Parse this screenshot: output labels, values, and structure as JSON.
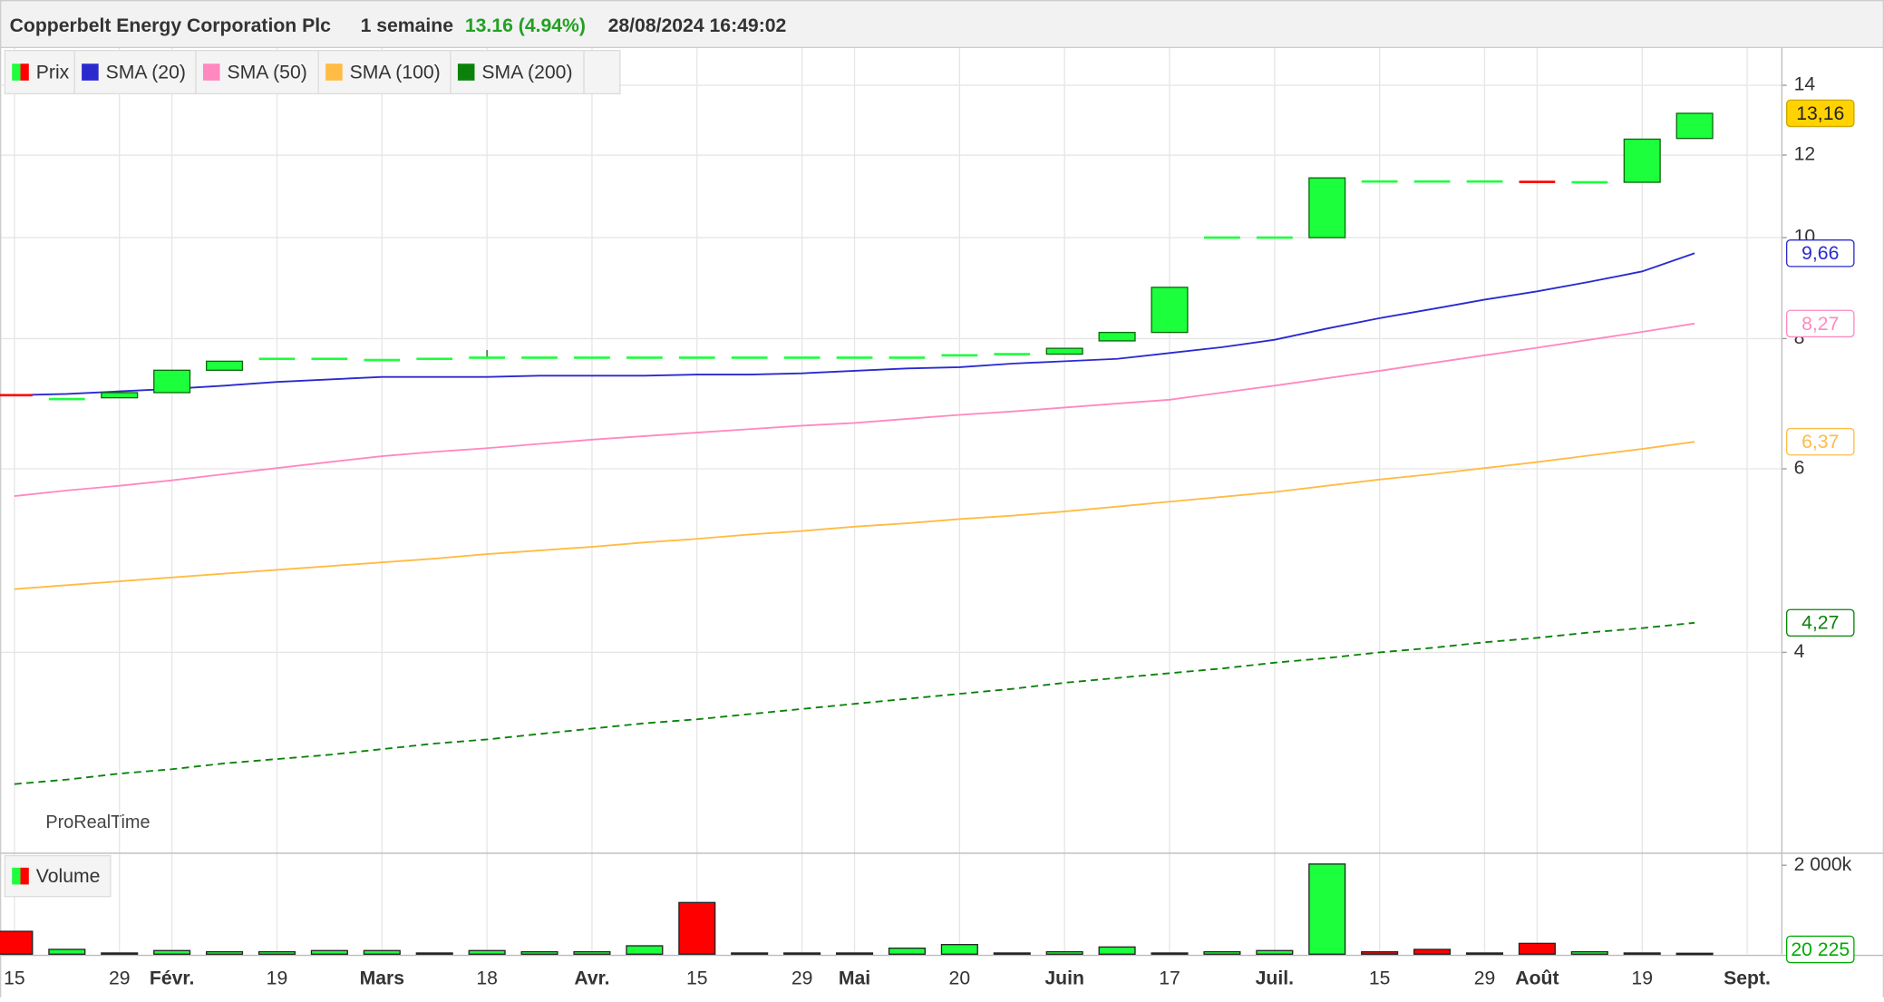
{
  "chart_data": [
    {
      "type": "candlestick",
      "title": "Copperbelt Energy Corporation Plc",
      "period": "1 semaine",
      "change": "13.16 (4.94%)",
      "timestamp": "28/08/2024 16:49:02",
      "watermark": "ProRealTime",
      "log_scale": true,
      "grid": true,
      "ylim": [
        2.58,
        15.2
      ],
      "yticks": [
        4,
        6,
        8,
        10,
        12,
        14
      ],
      "candles": {
        "name": "Prix",
        "up_color": "#1cff3c",
        "down_color": "#ff0000",
        "last_value_label": "13,16",
        "open": [
          7.06,
          7.0,
          7.02,
          7.1,
          7.46,
          7.65,
          7.65,
          7.63,
          7.65,
          7.67,
          7.67,
          7.67,
          7.67,
          7.67,
          7.67,
          7.67,
          7.67,
          7.67,
          7.67,
          7.73,
          7.73,
          7.96,
          8.11,
          10,
          10,
          10,
          11.32,
          11.32,
          11.32,
          11.31,
          11.3,
          11.3,
          12.45,
          null
        ],
        "high": [
          7.06,
          7.0,
          7.1,
          7.46,
          7.61,
          7.65,
          7.65,
          7.63,
          7.65,
          7.8,
          7.67,
          7.67,
          7.67,
          7.67,
          7.67,
          7.67,
          7.67,
          7.67,
          7.71,
          7.73,
          7.83,
          8.11,
          8.96,
          10,
          10,
          11.41,
          11.32,
          11.32,
          11.32,
          11.31,
          11.3,
          12.43,
          13.16,
          null
        ],
        "low": [
          7.04,
          7.0,
          7.02,
          7.1,
          7.46,
          7.65,
          7.65,
          7.63,
          7.65,
          7.67,
          7.67,
          7.67,
          7.67,
          7.67,
          7.67,
          7.67,
          7.67,
          7.67,
          7.67,
          7.73,
          7.73,
          7.96,
          8.11,
          10,
          10,
          10,
          11.32,
          11.32,
          11.32,
          11.29,
          11.3,
          11.3,
          12.45,
          null
        ],
        "close": [
          7.04,
          7.0,
          7.1,
          7.46,
          7.61,
          7.65,
          7.65,
          7.63,
          7.65,
          7.67,
          7.67,
          7.67,
          7.67,
          7.67,
          7.67,
          7.67,
          7.67,
          7.67,
          7.71,
          7.73,
          7.83,
          8.11,
          8.96,
          10,
          10,
          11.41,
          11.32,
          11.32,
          11.32,
          11.29,
          11.3,
          12.43,
          13.16,
          null
        ]
      },
      "series": [
        {
          "name": "SMA (20)",
          "color": "#2a2acf",
          "dashed": false,
          "last_value_label": "9,66",
          "values": [
            7.06,
            7.08,
            7.12,
            7.16,
            7.21,
            7.27,
            7.31,
            7.35,
            7.35,
            7.35,
            7.37,
            7.37,
            7.37,
            7.39,
            7.39,
            7.41,
            7.45,
            7.49,
            7.51,
            7.57,
            7.61,
            7.65,
            7.75,
            7.85,
            7.98,
            8.18,
            8.37,
            8.54,
            8.72,
            8.88,
            9.07,
            9.28,
            9.66,
            null
          ]
        },
        {
          "name": "SMA (50)",
          "color": "#ff88c0",
          "dashed": false,
          "last_value_label": "8,27",
          "values": [
            5.65,
            5.72,
            5.78,
            5.85,
            5.93,
            6.01,
            6.09,
            6.17,
            6.23,
            6.28,
            6.34,
            6.4,
            6.45,
            6.5,
            6.55,
            6.6,
            6.64,
            6.7,
            6.76,
            6.81,
            6.87,
            6.93,
            6.99,
            7.1,
            7.21,
            7.33,
            7.45,
            7.58,
            7.71,
            7.84,
            7.98,
            8.12,
            8.27,
            null
          ]
        },
        {
          "name": "SMA (100)",
          "color": "#ffbb44",
          "dashed": false,
          "last_value_label": "6,37",
          "values": [
            4.6,
            4.64,
            4.68,
            4.72,
            4.76,
            4.8,
            4.84,
            4.88,
            4.92,
            4.97,
            5.01,
            5.05,
            5.1,
            5.14,
            5.19,
            5.23,
            5.28,
            5.32,
            5.37,
            5.41,
            5.46,
            5.52,
            5.58,
            5.64,
            5.7,
            5.78,
            5.86,
            5.93,
            6.01,
            6.09,
            6.18,
            6.27,
            6.37,
            null
          ]
        },
        {
          "name": "SMA (200)",
          "color": "#0a820a",
          "dashed": true,
          "last_value_label": "4,27",
          "values": [
            2.99,
            3.02,
            3.06,
            3.09,
            3.13,
            3.16,
            3.19,
            3.23,
            3.27,
            3.3,
            3.34,
            3.38,
            3.42,
            3.45,
            3.49,
            3.53,
            3.57,
            3.61,
            3.65,
            3.69,
            3.74,
            3.78,
            3.82,
            3.86,
            3.91,
            3.95,
            4.0,
            4.04,
            4.09,
            4.13,
            4.18,
            4.22,
            4.27,
            null
          ]
        }
      ]
    },
    {
      "type": "bar",
      "categories": [
        "15",
        null,
        "29",
        "Févr.",
        null,
        "19",
        null,
        "Mars",
        null,
        "18",
        null,
        "Avr.",
        null,
        "15",
        null,
        "29",
        "Mai",
        null,
        "20",
        null,
        "Juin",
        null,
        "17",
        null,
        "Juil.",
        null,
        "15",
        null,
        "29",
        "Août",
        null,
        "19",
        null,
        "Sept."
      ],
      "ylim": [
        0,
        2216000
      ],
      "yticks": [
        {
          "value": 2000000,
          "label": "2 000k"
        }
      ],
      "series": [
        {
          "name": "Volume",
          "last_value_label": "20 225",
          "values": [
            514000,
            108000,
            27000,
            81000,
            54000,
            54000,
            81000,
            81000,
            27000,
            81000,
            54000,
            54000,
            189000,
            1162000,
            27000,
            27000,
            27000,
            135000,
            216000,
            27000,
            54000,
            162000,
            27000,
            54000,
            81000,
            2027000,
            54000,
            108000,
            27000,
            243000,
            54000,
            27000,
            20225,
            null
          ],
          "colors": [
            "#ff0000",
            "#1cff3c",
            "#1cff3c",
            "#1cff3c",
            "#1cff3c",
            "#1cff3c",
            "#1cff3c",
            "#1cff3c",
            "#1cff3c",
            "#1cff3c",
            "#1cff3c",
            "#1cff3c",
            "#1cff3c",
            "#ff0000",
            "#1cff3c",
            "#1cff3c",
            "#1cff3c",
            "#1cff3c",
            "#1cff3c",
            "#1cff3c",
            "#1cff3c",
            "#1cff3c",
            "#1cff3c",
            "#1cff3c",
            "#1cff3c",
            "#1cff3c",
            "#ff0000",
            "#ff0000",
            "#1cff3c",
            "#ff0000",
            "#1cff3c",
            "#1cff3c",
            "#1cff3c",
            null
          ]
        }
      ]
    }
  ]
}
